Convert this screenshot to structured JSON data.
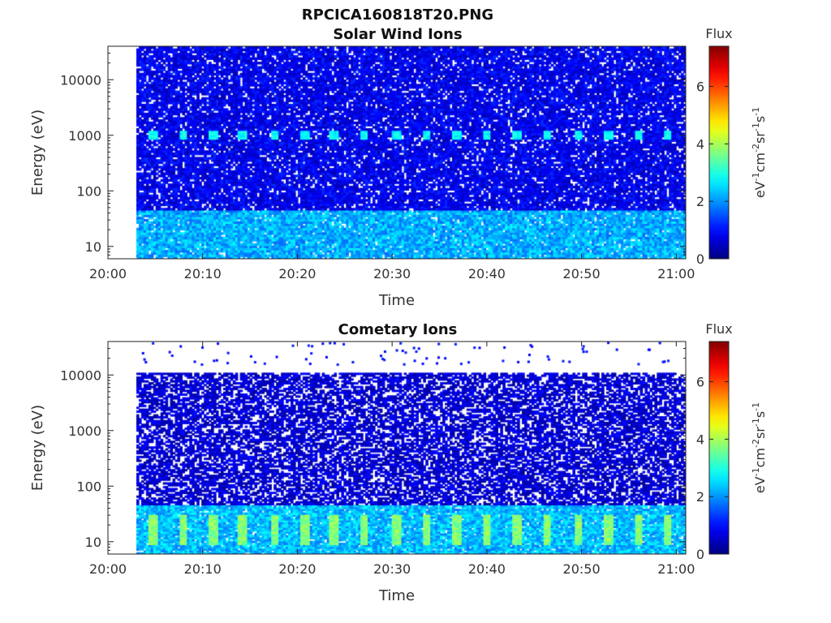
{
  "figure_title": "RPCICA160818T20.PNG",
  "colorbar": {
    "title": "Flux",
    "ticks": [
      "0",
      "2",
      "4",
      "6"
    ],
    "label_parts": [
      "eV",
      "-1",
      "cm",
      "-2",
      "sr",
      "-1",
      "s",
      "-1"
    ],
    "range": [
      0,
      7.4
    ],
    "colormap": "jet"
  },
  "chart_data": [
    {
      "type": "heatmap",
      "title": "Solar Wind Ions",
      "xlabel": "Time",
      "ylabel": "Energy (eV)",
      "x_ticks": [
        "20:00",
        "20:10",
        "20:20",
        "20:30",
        "20:40",
        "20:50",
        "21:00"
      ],
      "y_ticks": [
        "10",
        "100",
        "1000",
        "10000"
      ],
      "y_scale": "log",
      "x_range": [
        "20:00",
        "21:01"
      ],
      "y_range": [
        6,
        40000
      ],
      "data_start": "20:03",
      "data_energy_range": [
        6,
        40000
      ],
      "background_flux": 0.8,
      "low_energy_band": {
        "energy_max": 45,
        "flux": 2.2
      },
      "bursts": {
        "times": [
          "20:04:50",
          "20:07:55",
          "20:11:05",
          "20:14:15",
          "20:17:35",
          "20:20:45",
          "20:23:55",
          "20:27:05",
          "20:30:25",
          "20:33:40",
          "20:36:50",
          "20:40:00",
          "20:43:10",
          "20:46:25",
          "20:49:40",
          "20:52:50",
          "20:56:00",
          "20:59:05"
        ],
        "energy": 1000,
        "flux": 2.5
      }
    },
    {
      "type": "heatmap",
      "title": "Cometary Ions",
      "xlabel": "Time",
      "ylabel": "Energy (eV)",
      "x_ticks": [
        "20:00",
        "20:10",
        "20:20",
        "20:30",
        "20:40",
        "20:50",
        "21:00"
      ],
      "y_ticks": [
        "10",
        "100",
        "1000",
        "10000"
      ],
      "y_scale": "log",
      "x_range": [
        "20:00",
        "21:01"
      ],
      "y_range": [
        6,
        40000
      ],
      "data_start": "20:03",
      "data_energy_range": [
        6,
        11000
      ],
      "background_flux": 0.6,
      "low_energy_band": {
        "energy_max": 45,
        "flux": 2.3
      },
      "bursts": {
        "times": [
          "20:04:50",
          "20:07:55",
          "20:11:05",
          "20:14:15",
          "20:17:35",
          "20:20:45",
          "20:23:55",
          "20:27:05",
          "20:30:25",
          "20:33:40",
          "20:36:50",
          "20:40:00",
          "20:43:10",
          "20:46:25",
          "20:49:40",
          "20:52:50",
          "20:56:00",
          "20:59:05"
        ],
        "energy_range": [
          9,
          30
        ],
        "flux": 3.6
      }
    }
  ]
}
